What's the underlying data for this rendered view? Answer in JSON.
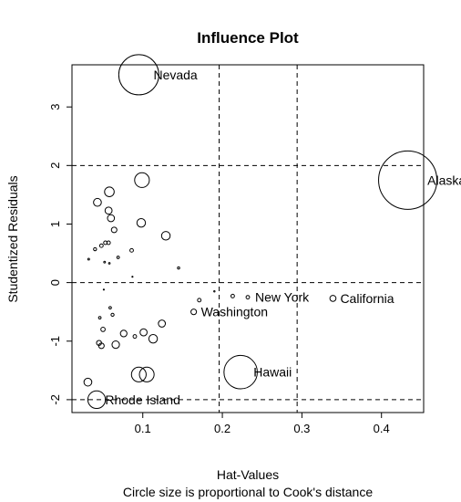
{
  "chart_data": {
    "type": "scatter",
    "title": "Influence Plot",
    "xlabel": "Hat-Values",
    "ylabel": "Studentized Residuals",
    "subtitle": "Circle size is proportional to Cook's distance",
    "xlim": [
      0.011,
      0.453
    ],
    "ylim": [
      -2.22,
      3.72
    ],
    "x_ticks": [
      0.1,
      0.2,
      0.3,
      0.4
    ],
    "x_tick_labels": [
      "0.1",
      "0.2",
      "0.3",
      "0.4"
    ],
    "y_ticks": [
      -2,
      -1,
      0,
      1,
      2,
      3
    ],
    "y_tick_labels": [
      "-2",
      "-1",
      "0",
      "1",
      "2",
      "3"
    ],
    "reference_lines": {
      "h": [
        -2,
        0,
        2
      ],
      "v": [
        0.196,
        0.294
      ]
    },
    "grid": false,
    "points": [
      {
        "x": 0.095,
        "y": 3.55,
        "cooksd": 0.26,
        "label": "Nevada"
      },
      {
        "x": 0.433,
        "y": 1.75,
        "cooksd": 0.55,
        "label": "Alaska"
      },
      {
        "x": 0.223,
        "y": -1.53,
        "cooksd": 0.18,
        "label": "Hawaii"
      },
      {
        "x": 0.042,
        "y": -2.0,
        "cooksd": 0.05,
        "label": "Rhode Island"
      },
      {
        "x": 0.164,
        "y": -0.5,
        "cooksd": 0.005,
        "label": "Washington"
      },
      {
        "x": 0.232,
        "y": -0.25,
        "cooksd": 0.002,
        "label": "New York"
      },
      {
        "x": 0.339,
        "y": -0.27,
        "cooksd": 0.006,
        "label": "California"
      },
      {
        "x": 0.099,
        "y": 1.75,
        "cooksd": 0.035,
        "label": ""
      },
      {
        "x": 0.058,
        "y": 1.55,
        "cooksd": 0.015,
        "label": ""
      },
      {
        "x": 0.043,
        "y": 1.37,
        "cooksd": 0.01,
        "label": ""
      },
      {
        "x": 0.057,
        "y": 1.23,
        "cooksd": 0.008,
        "label": ""
      },
      {
        "x": 0.06,
        "y": 1.1,
        "cooksd": 0.008,
        "label": ""
      },
      {
        "x": 0.098,
        "y": 1.02,
        "cooksd": 0.012,
        "label": ""
      },
      {
        "x": 0.064,
        "y": 0.9,
        "cooksd": 0.005,
        "label": ""
      },
      {
        "x": 0.129,
        "y": 0.8,
        "cooksd": 0.012,
        "label": ""
      },
      {
        "x": 0.053,
        "y": 0.68,
        "cooksd": 0.002,
        "label": ""
      },
      {
        "x": 0.057,
        "y": 0.68,
        "cooksd": 0.002,
        "label": ""
      },
      {
        "x": 0.048,
        "y": 0.63,
        "cooksd": 0.002,
        "label": ""
      },
      {
        "x": 0.04,
        "y": 0.57,
        "cooksd": 0.0015,
        "label": ""
      },
      {
        "x": 0.086,
        "y": 0.55,
        "cooksd": 0.002,
        "label": ""
      },
      {
        "x": 0.069,
        "y": 0.43,
        "cooksd": 0.001,
        "label": ""
      },
      {
        "x": 0.032,
        "y": 0.4,
        "cooksd": 0.0005,
        "label": ""
      },
      {
        "x": 0.052,
        "y": 0.35,
        "cooksd": 0.0005,
        "label": ""
      },
      {
        "x": 0.058,
        "y": 0.33,
        "cooksd": 0.0004,
        "label": ""
      },
      {
        "x": 0.145,
        "y": 0.25,
        "cooksd": 0.0008,
        "label": ""
      },
      {
        "x": 0.087,
        "y": 0.1,
        "cooksd": 0.0001,
        "label": ""
      },
      {
        "x": 0.051,
        "y": -0.12,
        "cooksd": 0.0001,
        "label": ""
      },
      {
        "x": 0.19,
        "y": -0.15,
        "cooksd": 0.0003,
        "label": ""
      },
      {
        "x": 0.213,
        "y": -0.23,
        "cooksd": 0.002,
        "label": ""
      },
      {
        "x": 0.171,
        "y": -0.3,
        "cooksd": 0.002,
        "label": ""
      },
      {
        "x": 0.059,
        "y": -0.43,
        "cooksd": 0.001,
        "label": ""
      },
      {
        "x": 0.062,
        "y": -0.55,
        "cooksd": 0.0015,
        "label": ""
      },
      {
        "x": 0.046,
        "y": -0.6,
        "cooksd": 0.001,
        "label": ""
      },
      {
        "x": 0.124,
        "y": -0.7,
        "cooksd": 0.008,
        "label": ""
      },
      {
        "x": 0.05,
        "y": -0.8,
        "cooksd": 0.003,
        "label": ""
      },
      {
        "x": 0.101,
        "y": -0.85,
        "cooksd": 0.008,
        "label": ""
      },
      {
        "x": 0.09,
        "y": -0.92,
        "cooksd": 0.002,
        "label": ""
      },
      {
        "x": 0.076,
        "y": -0.87,
        "cooksd": 0.007,
        "label": ""
      },
      {
        "x": 0.113,
        "y": -0.96,
        "cooksd": 0.012,
        "label": ""
      },
      {
        "x": 0.045,
        "y": -1.03,
        "cooksd": 0.004,
        "label": ""
      },
      {
        "x": 0.048,
        "y": -1.08,
        "cooksd": 0.005,
        "label": ""
      },
      {
        "x": 0.066,
        "y": -1.06,
        "cooksd": 0.009,
        "label": ""
      },
      {
        "x": 0.095,
        "y": -1.57,
        "cooksd": 0.035,
        "label": ""
      },
      {
        "x": 0.105,
        "y": -1.57,
        "cooksd": 0.035,
        "label": ""
      },
      {
        "x": 0.031,
        "y": -1.7,
        "cooksd": 0.01,
        "label": ""
      }
    ]
  }
}
